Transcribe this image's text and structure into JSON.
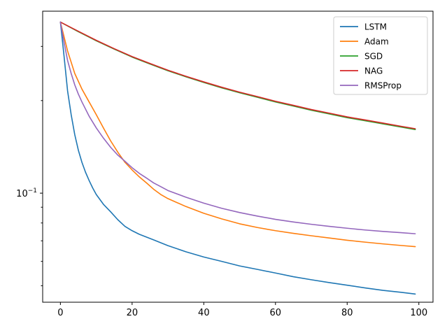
{
  "chart_data": {
    "type": "line",
    "title": "",
    "xlabel": "",
    "ylabel": "",
    "x_scale": "linear",
    "y_scale": "log",
    "xlim": [
      -4.95,
      103.95
    ],
    "ylim": [
      0.0442,
      0.3905
    ],
    "x_ticks": [
      0,
      20,
      40,
      60,
      80,
      100
    ],
    "x_tick_labels": [
      "0",
      "20",
      "40",
      "60",
      "80",
      "100"
    ],
    "y_ticks": [
      0.1
    ],
    "y_tick_labels": [
      "10−1"
    ],
    "y_minor_ticks": [
      0.05,
      0.06,
      0.07,
      0.08,
      0.09,
      0.2,
      0.3
    ],
    "grid": false,
    "legend_position": "top-right",
    "series": [
      {
        "name": "LSTM",
        "color": "#1f77b4",
        "points": [
          [
            0,
            0.36
          ],
          [
            1,
            0.28
          ],
          [
            2,
            0.215
          ],
          [
            3,
            0.18
          ],
          [
            4,
            0.155
          ],
          [
            5,
            0.138
          ],
          [
            6,
            0.126
          ],
          [
            7,
            0.117
          ],
          [
            8,
            0.11
          ],
          [
            9,
            0.104
          ],
          [
            10,
            0.099
          ],
          [
            12,
            0.092
          ],
          [
            14,
            0.087
          ],
          [
            16,
            0.082
          ],
          [
            18,
            0.078
          ],
          [
            20,
            0.0755
          ],
          [
            22,
            0.0735
          ],
          [
            24,
            0.072
          ],
          [
            26,
            0.0705
          ],
          [
            28,
            0.069
          ],
          [
            30,
            0.0675
          ],
          [
            35,
            0.0645
          ],
          [
            40,
            0.062
          ],
          [
            45,
            0.06
          ],
          [
            50,
            0.058
          ],
          [
            55,
            0.0565
          ],
          [
            60,
            0.055
          ],
          [
            65,
            0.0535
          ],
          [
            70,
            0.0523
          ],
          [
            75,
            0.0512
          ],
          [
            80,
            0.0502
          ],
          [
            85,
            0.0492
          ],
          [
            90,
            0.0483
          ],
          [
            95,
            0.0476
          ],
          [
            99,
            0.047
          ]
        ]
      },
      {
        "name": "Adam",
        "color": "#ff7f0e",
        "points": [
          [
            0,
            0.36
          ],
          [
            2,
            0.29
          ],
          [
            4,
            0.245
          ],
          [
            6,
            0.218
          ],
          [
            8,
            0.198
          ],
          [
            10,
            0.18
          ],
          [
            12,
            0.163
          ],
          [
            14,
            0.148
          ],
          [
            16,
            0.136
          ],
          [
            18,
            0.126
          ],
          [
            20,
            0.119
          ],
          [
            22,
            0.113
          ],
          [
            24,
            0.108
          ],
          [
            26,
            0.103
          ],
          [
            28,
            0.099
          ],
          [
            30,
            0.096
          ],
          [
            35,
            0.0905
          ],
          [
            40,
            0.086
          ],
          [
            45,
            0.0825
          ],
          [
            50,
            0.0795
          ],
          [
            55,
            0.0773
          ],
          [
            60,
            0.0755
          ],
          [
            65,
            0.074
          ],
          [
            70,
            0.0727
          ],
          [
            75,
            0.0715
          ],
          [
            80,
            0.0703
          ],
          [
            85,
            0.0693
          ],
          [
            90,
            0.0684
          ],
          [
            95,
            0.0676
          ],
          [
            99,
            0.067
          ]
        ]
      },
      {
        "name": "SGD",
        "color": "#2ca02c",
        "points": [
          [
            0,
            0.36
          ],
          [
            5,
            0.335
          ],
          [
            10,
            0.313
          ],
          [
            15,
            0.294
          ],
          [
            20,
            0.277
          ],
          [
            25,
            0.263
          ],
          [
            30,
            0.25
          ],
          [
            35,
            0.239
          ],
          [
            40,
            0.229
          ],
          [
            45,
            0.22
          ],
          [
            50,
            0.212
          ],
          [
            55,
            0.205
          ],
          [
            60,
            0.198
          ],
          [
            65,
            0.192
          ],
          [
            70,
            0.186
          ],
          [
            75,
            0.181
          ],
          [
            80,
            0.176
          ],
          [
            85,
            0.172
          ],
          [
            90,
            0.168
          ],
          [
            95,
            0.164
          ],
          [
            99,
            0.161
          ]
        ]
      },
      {
        "name": "NAG",
        "color": "#d62728",
        "points": [
          [
            0,
            0.36
          ],
          [
            5,
            0.336
          ],
          [
            10,
            0.314
          ],
          [
            15,
            0.295
          ],
          [
            20,
            0.278
          ],
          [
            25,
            0.264
          ],
          [
            30,
            0.251
          ],
          [
            35,
            0.24
          ],
          [
            40,
            0.23
          ],
          [
            45,
            0.221
          ],
          [
            50,
            0.213
          ],
          [
            55,
            0.206
          ],
          [
            60,
            0.199
          ],
          [
            65,
            0.193
          ],
          [
            70,
            0.187
          ],
          [
            75,
            0.182
          ],
          [
            80,
            0.177
          ],
          [
            85,
            0.173
          ],
          [
            90,
            0.169
          ],
          [
            95,
            0.165
          ],
          [
            99,
            0.162
          ]
        ]
      },
      {
        "name": "RMSProp",
        "color": "#9467bd",
        "points": [
          [
            0,
            0.36
          ],
          [
            1,
            0.31
          ],
          [
            2,
            0.27
          ],
          [
            3,
            0.245
          ],
          [
            4,
            0.225
          ],
          [
            5,
            0.21
          ],
          [
            6,
            0.198
          ],
          [
            8,
            0.178
          ],
          [
            10,
            0.163
          ],
          [
            12,
            0.151
          ],
          [
            14,
            0.141
          ],
          [
            16,
            0.133
          ],
          [
            18,
            0.127
          ],
          [
            20,
            0.121
          ],
          [
            22,
            0.116
          ],
          [
            24,
            0.112
          ],
          [
            26,
            0.108
          ],
          [
            28,
            0.105
          ],
          [
            30,
            0.102
          ],
          [
            35,
            0.097
          ],
          [
            40,
            0.0928
          ],
          [
            45,
            0.0893
          ],
          [
            50,
            0.0865
          ],
          [
            55,
            0.0842
          ],
          [
            60,
            0.0822
          ],
          [
            65,
            0.0806
          ],
          [
            70,
            0.0792
          ],
          [
            75,
            0.078
          ],
          [
            80,
            0.0769
          ],
          [
            85,
            0.0759
          ],
          [
            90,
            0.0751
          ],
          [
            95,
            0.0744
          ],
          [
            99,
            0.0738
          ]
        ]
      }
    ]
  }
}
